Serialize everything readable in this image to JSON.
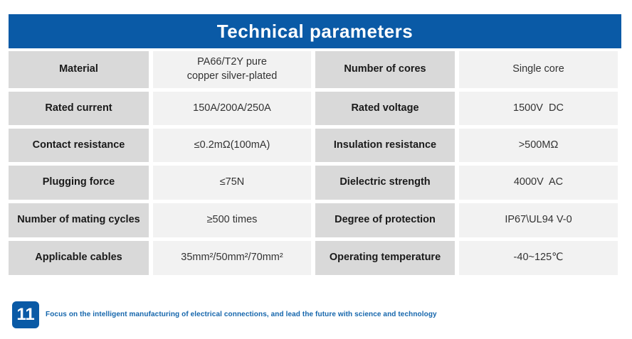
{
  "page": {
    "title": "Technical parameters",
    "page_number": "11",
    "tagline": "Focus on the intelligent manufacturing of electrical connections, and lead the future with science and technology"
  },
  "colors": {
    "accent_blue": "#0A5AA6",
    "label_cell_bg": "#D9D9D9",
    "value_cell_bg": "#F2F2F2",
    "tagline_blue": "#1566AC"
  },
  "table": {
    "rows": [
      {
        "left_label": "Material",
        "left_value": "PA66/T2Y pure\ncopper silver-plated",
        "right_label": "Number of cores",
        "right_value": "Single core"
      },
      {
        "left_label": "Rated current",
        "left_value": "150A/200A/250A",
        "right_label": "Rated voltage",
        "right_value": "1500V  DC"
      },
      {
        "left_label": "Contact resistance",
        "left_value": "≤0.2mΩ(100mA)",
        "right_label": "Insulation resistance",
        "right_value": ">500MΩ"
      },
      {
        "left_label": "Plugging force",
        "left_value": "≤75N",
        "right_label": "Dielectric strength",
        "right_value": "4000V  AC"
      },
      {
        "left_label": "Number of mating cycles",
        "left_value": "≥500 times",
        "right_label": "Degree of protection",
        "right_value": "IP67\\UL94 V-0"
      },
      {
        "left_label": "Applicable cables",
        "left_value": "35mm²/50mm²/70mm²",
        "right_label": "Operating temperature",
        "right_value": "-40~125℃"
      }
    ]
  }
}
